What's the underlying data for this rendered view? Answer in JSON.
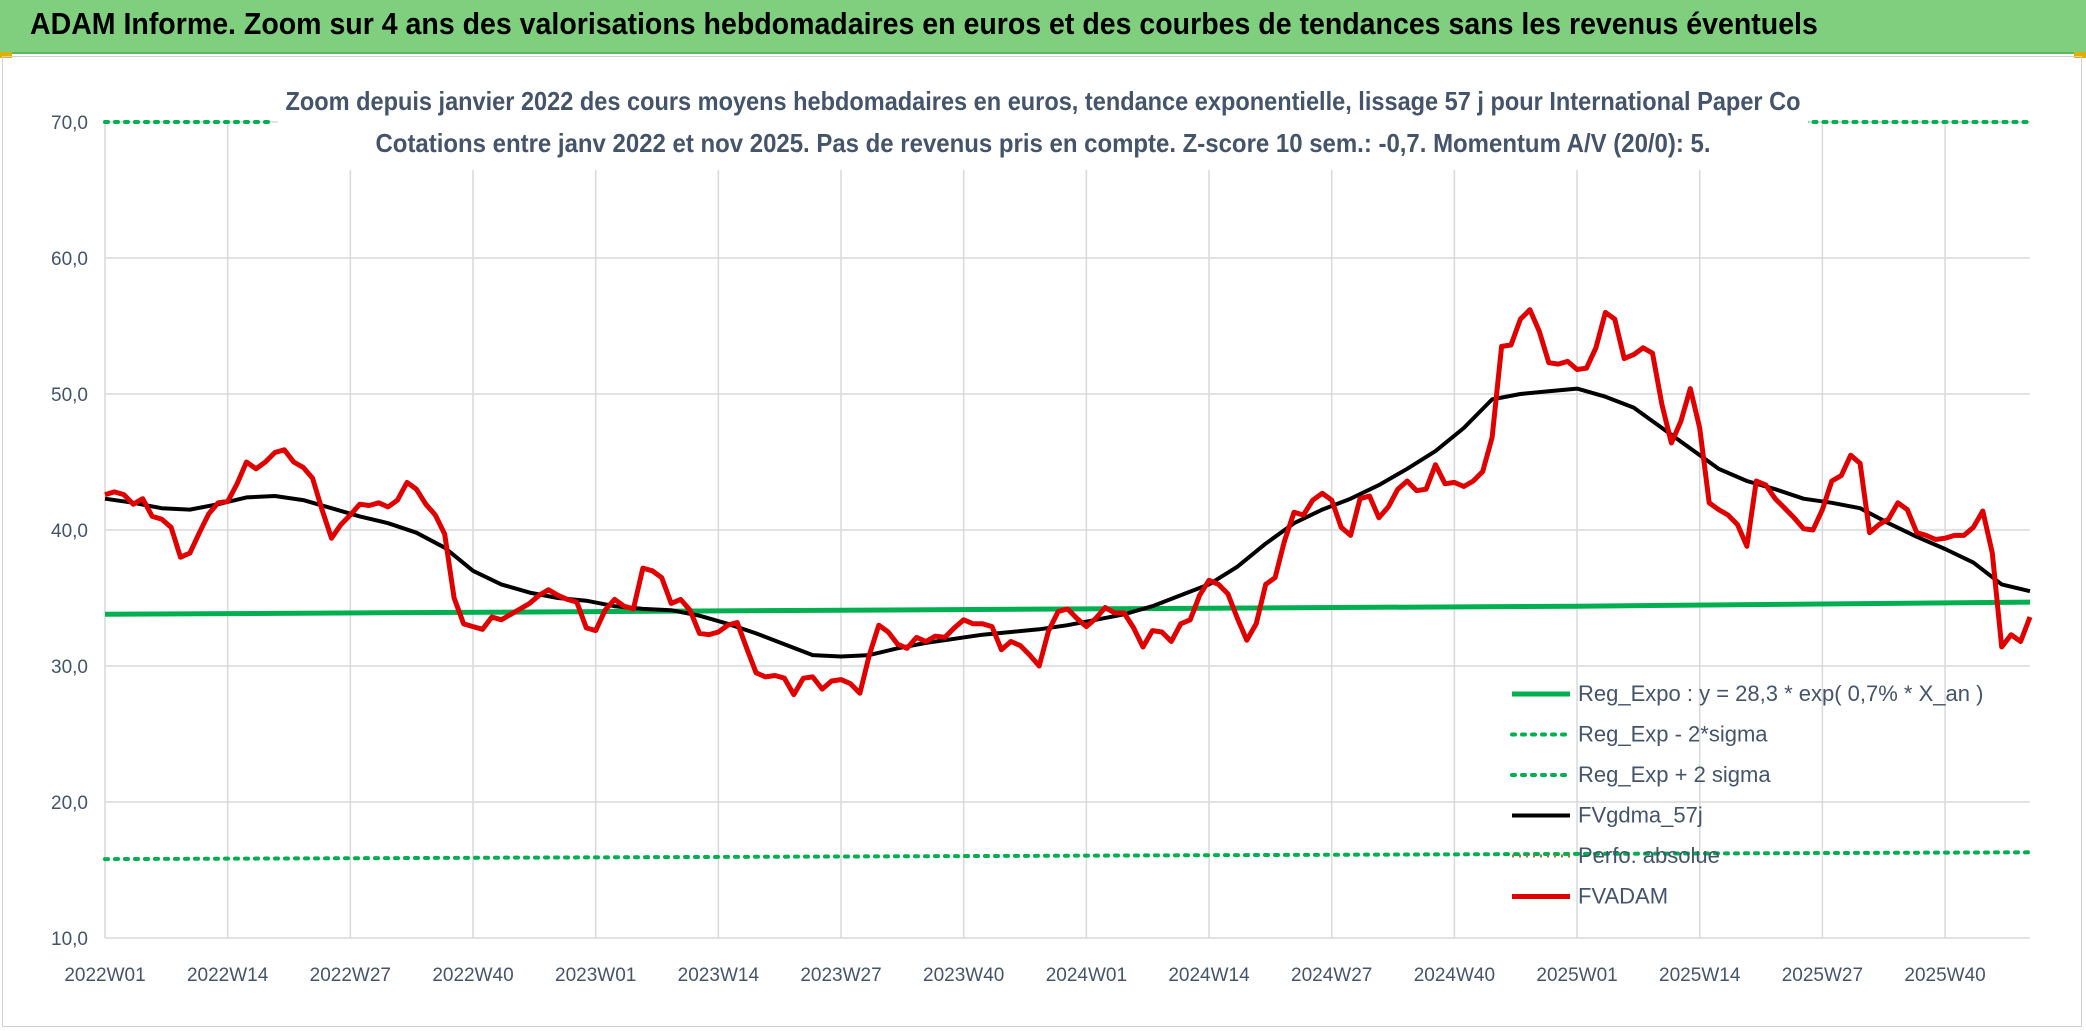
{
  "banner": {
    "title": "ADAM Informe. Zoom sur 4 ans des valorisations hebdomadaires en euros et des courbes de tendances sans les revenus éventuels"
  },
  "chart_data": {
    "type": "line",
    "title": "Zoom depuis janvier 2022 des cours moyens hebdomadaires en euros, tendance exponentielle, lissage 57 j pour International Paper Co",
    "subtitle": "Cotations entre janv 2022 et nov 2025. Pas de revenus pris en compte. Z-score 10 sem.: -0,7. Momentum A/V (20/0): 5.",
    "xlabel": "",
    "ylabel": "",
    "ylim": [
      10,
      70
    ],
    "yticks": [
      "10,0",
      "20,0",
      "30,0",
      "40,0",
      "50,0",
      "60,0",
      "70,0"
    ],
    "x_tick_labels": [
      "2022W01",
      "2022W14",
      "2022W27",
      "2022W40",
      "2023W01",
      "2023W14",
      "2023W27",
      "2023W40",
      "2024W01",
      "2024W14",
      "2024W27",
      "2024W40",
      "2025W01",
      "2025W14",
      "2025W27",
      "2025W40"
    ],
    "x_tick_positions": [
      0,
      13,
      26,
      39,
      52,
      65,
      78,
      91,
      104,
      117,
      130,
      143,
      156,
      169,
      182,
      195
    ],
    "x_count": 205,
    "legend_position": "bottom-right",
    "colors": {
      "green": "#00b050",
      "black": "#000000",
      "red": "#e00000",
      "brown": "#b07030",
      "grid": "#d9d9d9",
      "text": "#44546a"
    },
    "legend": [
      "Reg_Expo : y = 28,3 * exp( 0,7% *  X_an )",
      "Reg_Exp - 2*sigma",
      "Reg_Exp + 2 sigma",
      "FVgdma_57j",
      "Perfo. absolue",
      "FVADAM"
    ],
    "series": [
      {
        "name": "Reg_Expo",
        "style": "solid-green-thick",
        "x": [
          0,
          52,
          104,
          156,
          204
        ],
        "values": [
          33.8,
          34.0,
          34.2,
          34.4,
          34.7
        ]
      },
      {
        "name": "Reg_Exp - 2*sigma",
        "style": "dotted-green",
        "x": [
          0,
          204
        ],
        "values": [
          15.8,
          16.3
        ]
      },
      {
        "name": "Reg_Exp + 2 sigma",
        "style": "dotted-green",
        "x": [
          0,
          18,
          180,
          204
        ],
        "values": [
          70.0,
          70.0,
          70.0,
          70.0
        ],
        "visible_segments": [
          [
            0,
            18
          ],
          [
            180,
            204
          ]
        ]
      },
      {
        "name": "FVgdma_57j",
        "style": "solid-black",
        "x": [
          0,
          3,
          6,
          9,
          12,
          15,
          18,
          21,
          24,
          27,
          30,
          33,
          36,
          39,
          42,
          45,
          48,
          51,
          54,
          57,
          60,
          63,
          66,
          69,
          72,
          75,
          78,
          81,
          84,
          87,
          90,
          93,
          96,
          99,
          102,
          105,
          108,
          111,
          114,
          117,
          120,
          123,
          126,
          129,
          132,
          135,
          138,
          141,
          144,
          147,
          150,
          153,
          156,
          159,
          162,
          165,
          168,
          171,
          174,
          177,
          180,
          183,
          186,
          189,
          192,
          195,
          198,
          201,
          204
        ],
        "values": [
          42.3,
          42.0,
          41.6,
          41.5,
          41.9,
          42.4,
          42.5,
          42.2,
          41.6,
          41.0,
          40.5,
          39.8,
          38.7,
          37.0,
          36.0,
          35.4,
          35.0,
          34.8,
          34.4,
          34.2,
          34.1,
          33.7,
          33.1,
          32.4,
          31.6,
          30.8,
          30.7,
          30.8,
          31.3,
          31.7,
          32.0,
          32.3,
          32.5,
          32.7,
          33.0,
          33.4,
          33.8,
          34.4,
          35.2,
          36.0,
          37.3,
          39.0,
          40.5,
          41.5,
          42.3,
          43.3,
          44.5,
          45.8,
          47.5,
          49.6,
          50.0,
          50.2,
          50.4,
          49.8,
          49.0,
          47.5,
          46.0,
          44.5,
          43.6,
          43.0,
          42.3,
          42.0,
          41.6,
          40.5,
          39.5,
          38.6,
          37.6,
          36.0,
          35.5
        ]
      },
      {
        "name": "FVADAM",
        "style": "solid-red-thick",
        "x": [
          0,
          1,
          2,
          3,
          4,
          5,
          6,
          7,
          8,
          9,
          10,
          11,
          12,
          13,
          14,
          15,
          16,
          17,
          18,
          19,
          20,
          21,
          22,
          23,
          24,
          25,
          26,
          27,
          28,
          29,
          30,
          31,
          32,
          33,
          34,
          35,
          36,
          37,
          38,
          39,
          40,
          41,
          42,
          43,
          44,
          45,
          46,
          47,
          48,
          49,
          50,
          51,
          52,
          53,
          54,
          55,
          56,
          57,
          58,
          59,
          60,
          61,
          62,
          63,
          64,
          65,
          66,
          67,
          68,
          69,
          70,
          71,
          72,
          73,
          74,
          75,
          76,
          77,
          78,
          79,
          80,
          81,
          82,
          83,
          84,
          85,
          86,
          87,
          88,
          89,
          90,
          91,
          92,
          93,
          94,
          95,
          96,
          97,
          98,
          99,
          100,
          101,
          102,
          103,
          104,
          105,
          106,
          107,
          108,
          109,
          110,
          111,
          112,
          113,
          114,
          115,
          116,
          117,
          118,
          119,
          120,
          121,
          122,
          123,
          124,
          125,
          126,
          127,
          128,
          129,
          130,
          131,
          132,
          133,
          134,
          135,
          136,
          137,
          138,
          139,
          140,
          141,
          142,
          143,
          144,
          145,
          146,
          147,
          148,
          149,
          150,
          151,
          152,
          153,
          154,
          155,
          156,
          157,
          158,
          159,
          160,
          161,
          162,
          163,
          164,
          165,
          166,
          167,
          168,
          169,
          170,
          171,
          172,
          173,
          174,
          175,
          176,
          177,
          178,
          179,
          180,
          181,
          182,
          183,
          184,
          185,
          186,
          187,
          188,
          189,
          190,
          191,
          192,
          193,
          194,
          195,
          196,
          197,
          198,
          199,
          200,
          201,
          202,
          203,
          204
        ],
        "values": [
          42.6,
          42.8,
          42.6,
          41.9,
          42.3,
          41.0,
          40.8,
          40.2,
          38.0,
          38.3,
          39.8,
          41.2,
          42.0,
          42.1,
          43.4,
          45.0,
          44.5,
          45.0,
          45.7,
          45.9,
          45.0,
          44.6,
          43.8,
          41.5,
          39.4,
          40.4,
          41.1,
          41.9,
          41.8,
          42.0,
          41.7,
          42.2,
          43.5,
          43.0,
          41.9,
          41.1,
          39.7,
          35.0,
          33.1,
          32.9,
          32.7,
          33.6,
          33.4,
          33.8,
          34.2,
          34.6,
          35.2,
          35.6,
          35.2,
          34.9,
          34.7,
          32.8,
          32.6,
          34.1,
          34.9,
          34.4,
          34.2,
          37.2,
          37.0,
          36.5,
          34.6,
          34.9,
          34.1,
          32.4,
          32.3,
          32.5,
          33.0,
          33.2,
          31.3,
          29.5,
          29.2,
          29.3,
          29.1,
          27.9,
          29.1,
          29.2,
          28.3,
          28.9,
          29.0,
          28.7,
          28.0,
          30.8,
          33.0,
          32.5,
          31.6,
          31.3,
          32.1,
          31.8,
          32.2,
          32.1,
          32.8,
          33.4,
          33.1,
          33.1,
          32.9,
          31.2,
          31.8,
          31.5,
          30.8,
          30.0,
          32.6,
          34.0,
          34.2,
          33.5,
          32.9,
          33.5,
          34.3,
          33.9,
          33.9,
          32.8,
          31.4,
          32.6,
          32.5,
          31.8,
          33.1,
          33.4,
          35.2,
          36.3,
          36.0,
          35.3,
          33.5,
          31.9,
          33.1,
          36.0,
          36.5,
          39.2,
          41.3,
          41.1,
          42.2,
          42.7,
          42.2,
          40.2,
          39.6,
          42.3,
          42.5,
          40.9,
          41.7,
          43.0,
          43.6,
          42.9,
          43.0,
          44.8,
          43.4,
          43.5,
          43.2,
          43.6,
          44.3,
          46.8,
          53.5,
          53.6,
          55.5,
          56.2,
          54.6,
          52.3,
          52.2,
          52.4,
          51.8,
          51.9,
          53.4,
          56.0,
          55.5,
          52.6,
          52.9,
          53.4,
          53.0,
          49.2,
          46.4,
          48.0,
          50.4,
          47.5,
          42.0,
          41.5,
          41.1,
          40.4,
          38.8,
          43.6,
          43.3,
          42.3,
          41.6,
          40.9,
          40.1,
          40.0,
          41.5,
          43.6,
          44.0,
          45.5,
          44.9,
          39.8,
          40.4,
          40.8,
          42.0,
          41.5,
          39.8,
          39.6,
          39.3,
          39.4,
          39.6,
          39.6,
          40.2,
          41.4,
          38.3,
          31.4,
          32.3,
          31.8,
          33.6
        ]
      }
    ]
  }
}
